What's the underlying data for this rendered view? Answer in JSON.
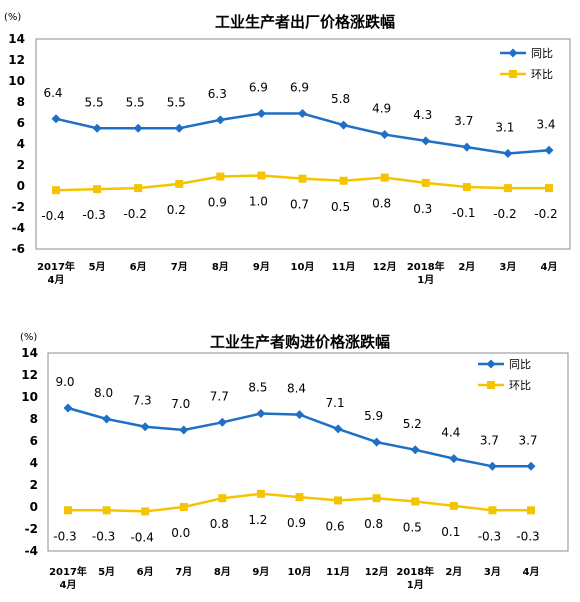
{
  "chart_data": [
    {
      "type": "line",
      "title": "工业生产者出厂价格涨跌幅",
      "unit": "(%)",
      "ylim": [
        -6,
        14
      ],
      "yticks": [
        -6,
        -4,
        -2,
        0,
        2,
        4,
        6,
        8,
        10,
        12,
        14
      ],
      "categories": [
        [
          "2017年",
          "4月"
        ],
        [
          "5月"
        ],
        [
          "6月"
        ],
        [
          "7月"
        ],
        [
          "8月"
        ],
        [
          "9月"
        ],
        [
          "10月"
        ],
        [
          "11月"
        ],
        [
          "12月"
        ],
        [
          "2018年",
          "1月"
        ],
        [
          "2月"
        ],
        [
          "3月"
        ],
        [
          "4月"
        ]
      ],
      "legend_position": "top-right",
      "grid": false,
      "series": [
        {
          "name": "同比",
          "color": "#1f6fc4",
          "marker": "diamond",
          "label_position": "above",
          "values": [
            6.4,
            5.5,
            5.5,
            5.5,
            6.3,
            6.9,
            6.9,
            5.8,
            4.9,
            4.3,
            3.7,
            3.1,
            3.4
          ],
          "labels": [
            "6.4",
            "5.5",
            "5.5",
            "5.5",
            "6.3",
            "6.9",
            "6.9",
            "5.8",
            "4.9",
            "4.3",
            "3.7",
            "3.1",
            "3.4"
          ]
        },
        {
          "name": "环比",
          "color": "#f5c400",
          "marker": "square",
          "label_position": "below",
          "values": [
            -0.4,
            -0.3,
            -0.2,
            0.2,
            0.9,
            1.0,
            0.7,
            0.5,
            0.8,
            0.3,
            -0.1,
            -0.2,
            -0.2
          ],
          "labels": [
            "-0.4",
            "-0.3",
            "-0.2",
            "0.2",
            "0.9",
            "1.0",
            "0.7",
            "0.5",
            "0.8",
            "0.3",
            "-0.1",
            "-0.2",
            "-0.2"
          ]
        }
      ]
    },
    {
      "type": "line",
      "title": "工业生产者购进价格涨跌幅",
      "unit": "(%)",
      "ylim": [
        -4,
        14
      ],
      "yticks": [
        -4,
        -2,
        0,
        2,
        4,
        6,
        8,
        10,
        12,
        14
      ],
      "categories": [
        [
          "2017年",
          "4月"
        ],
        [
          "5月"
        ],
        [
          "6月"
        ],
        [
          "7月"
        ],
        [
          "8月"
        ],
        [
          "9月"
        ],
        [
          "10月"
        ],
        [
          "11月"
        ],
        [
          "12月"
        ],
        [
          "2018年",
          "1月"
        ],
        [
          "2月"
        ],
        [
          "3月"
        ],
        [
          "4月"
        ]
      ],
      "legend_position": "top-right",
      "grid": false,
      "series": [
        {
          "name": "同比",
          "color": "#1f6fc4",
          "marker": "diamond",
          "label_position": "above",
          "values": [
            9.0,
            8.0,
            7.3,
            7.0,
            7.7,
            8.5,
            8.4,
            7.1,
            5.9,
            5.2,
            4.4,
            3.7,
            3.7
          ],
          "labels": [
            "9.0",
            "8.0",
            "7.3",
            "7.0",
            "7.7",
            "8.5",
            "8.4",
            "7.1",
            "5.9",
            "5.2",
            "4.4",
            "3.7",
            "3.7"
          ]
        },
        {
          "name": "环比",
          "color": "#f5c400",
          "marker": "square",
          "label_position": "below",
          "values": [
            -0.3,
            -0.3,
            -0.4,
            0.0,
            0.8,
            1.2,
            0.9,
            0.6,
            0.8,
            0.5,
            0.1,
            -0.3,
            -0.3
          ],
          "labels": [
            "-0.3",
            "-0.3",
            "-0.4",
            "0.0",
            "0.8",
            "1.2",
            "0.9",
            "0.6",
            "0.8",
            "0.5",
            "0.1",
            "-0.3",
            "-0.3"
          ]
        }
      ]
    }
  ]
}
